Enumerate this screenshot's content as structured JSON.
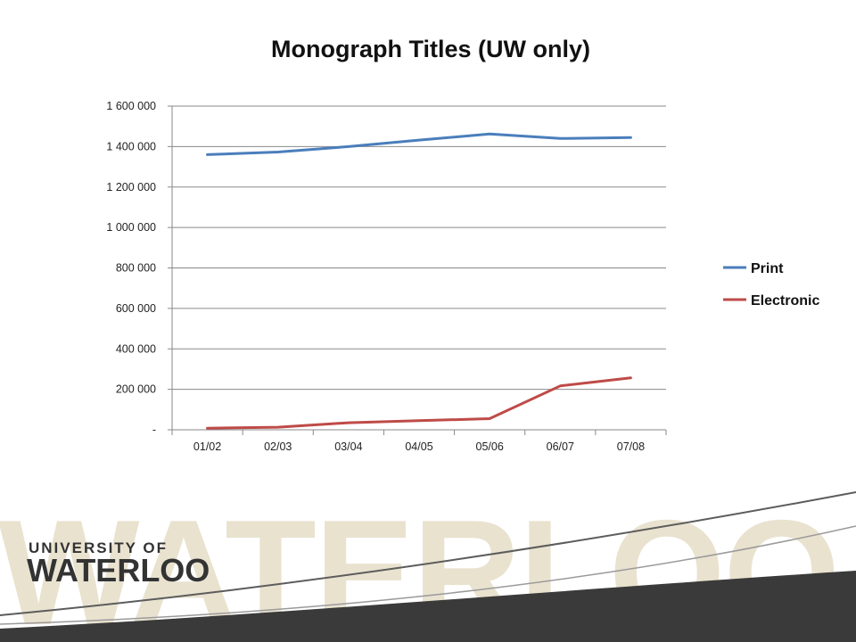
{
  "chart_data": {
    "type": "line",
    "title": "Monograph Titles (UW only)",
    "categories": [
      "01/02",
      "02/03",
      "03/04",
      "04/05",
      "05/06",
      "06/07",
      "07/08"
    ],
    "y_tick_labels": [
      "-",
      "200 000",
      "400 000",
      "600 000",
      "800 000",
      "1 000 000",
      "1 200 000",
      "1 400 000",
      "1 600 000"
    ],
    "ylim": [
      0,
      1600000
    ],
    "grid": true,
    "legend_position": "right",
    "series": [
      {
        "name": "Print",
        "color": "#4a7ebb",
        "values": [
          1360000,
          1373000,
          1400000,
          1432000,
          1462000,
          1440000,
          1445000
        ]
      },
      {
        "name": "Electronic",
        "color": "#be4b48",
        "values": [
          8000,
          13000,
          35000,
          45000,
          55000,
          217000,
          257000
        ]
      }
    ]
  },
  "footer": {
    "watermark_text": "WATERLOO",
    "logo_line1": "UNIVERSITY OF",
    "logo_line2": "WATERLOO",
    "band_color": "#3a3a3a",
    "watermark_color": "#e9e2cf"
  }
}
